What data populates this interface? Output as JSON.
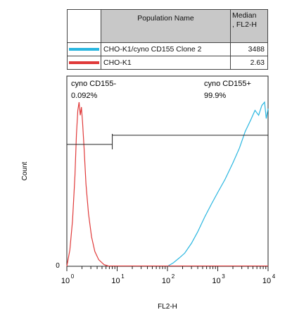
{
  "legend": {
    "header_name": "Population Name",
    "header_median_line1": "Median",
    "header_median_line2": ", FL2-H",
    "rows": [
      {
        "name": "CHO-K1/cyno CD155 Clone 2",
        "value": "3488",
        "color": "#29b6e0"
      },
      {
        "name": "CHO-K1",
        "value": "2.63",
        "color": "#e03a3a"
      }
    ]
  },
  "chart_data": {
    "type": "histogram",
    "xlabel": "FL2-H",
    "ylabel": "Count",
    "x_scale": "log",
    "xlim": [
      1,
      10000
    ],
    "y_ticks": [
      "0"
    ],
    "x_ticks": [
      {
        "base": "10",
        "exp": "0"
      },
      {
        "base": "10",
        "exp": "1"
      },
      {
        "base": "10",
        "exp": "2"
      },
      {
        "base": "10",
        "exp": "3"
      },
      {
        "base": "10",
        "exp": "4"
      }
    ],
    "gates": [
      {
        "name": "cyno CD155-",
        "percent": "0.092%",
        "range": [
          1,
          8
        ]
      },
      {
        "name": "cyno CD155+",
        "percent": "99.9%",
        "range": [
          8,
          10000
        ]
      }
    ],
    "series": [
      {
        "name": "CHO-K1",
        "color": "#e03a3a",
        "points": [
          [
            1.0,
            0.0
          ],
          [
            1.15,
            0.1
          ],
          [
            1.3,
            0.28
          ],
          [
            1.45,
            0.55
          ],
          [
            1.55,
            0.8
          ],
          [
            1.65,
            0.95
          ],
          [
            1.75,
            1.0
          ],
          [
            1.85,
            0.92
          ],
          [
            1.95,
            0.97
          ],
          [
            2.05,
            0.88
          ],
          [
            2.2,
            0.72
          ],
          [
            2.4,
            0.5
          ],
          [
            2.7,
            0.32
          ],
          [
            3.1,
            0.18
          ],
          [
            3.6,
            0.09
          ],
          [
            4.3,
            0.04
          ],
          [
            5.5,
            0.01
          ],
          [
            7.0,
            0.0
          ]
        ]
      },
      {
        "name": "CHO-K1/cyno CD155 Clone 2",
        "color": "#29b6e0",
        "points": [
          [
            100,
            0.0
          ],
          [
            130,
            0.02
          ],
          [
            170,
            0.05
          ],
          [
            220,
            0.08
          ],
          [
            300,
            0.14
          ],
          [
            400,
            0.21
          ],
          [
            550,
            0.3
          ],
          [
            750,
            0.38
          ],
          [
            1000,
            0.45
          ],
          [
            1400,
            0.53
          ],
          [
            2000,
            0.63
          ],
          [
            2700,
            0.72
          ],
          [
            3500,
            0.82
          ],
          [
            4500,
            0.89
          ],
          [
            5500,
            0.95
          ],
          [
            6500,
            0.92
          ],
          [
            7500,
            0.98
          ],
          [
            8500,
            1.0
          ],
          [
            9200,
            0.9
          ],
          [
            10000,
            0.96
          ]
        ]
      }
    ]
  }
}
